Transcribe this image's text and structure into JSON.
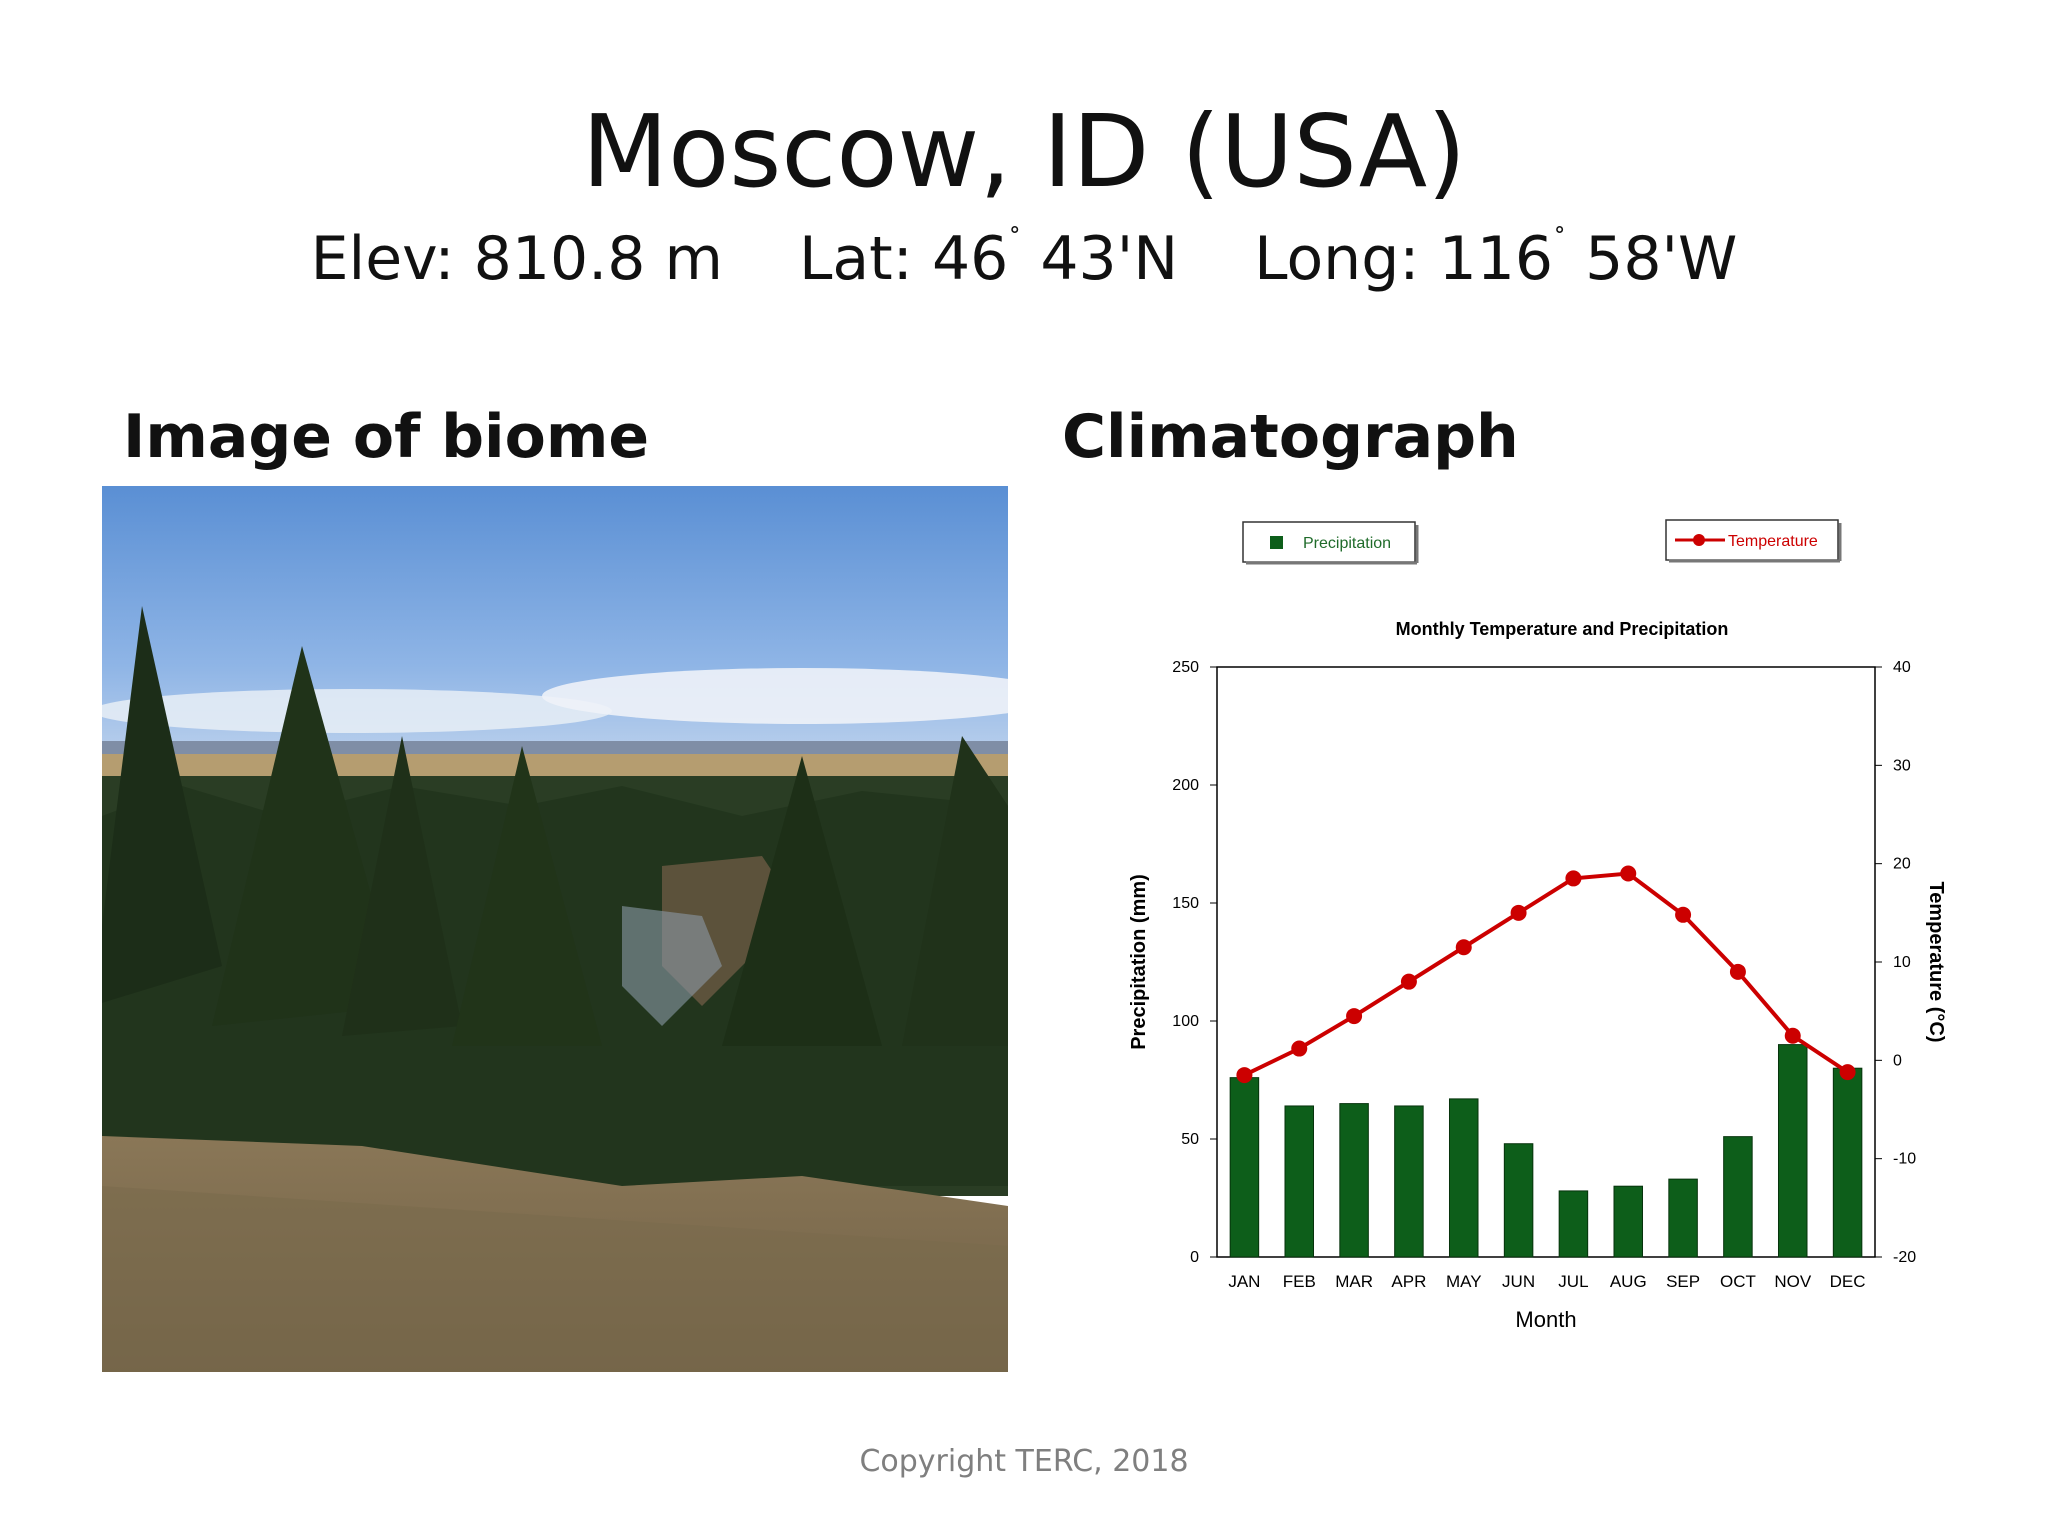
{
  "slide": {
    "title": "Moscow, ID (USA)",
    "elevation": "Elev: 810.8 m",
    "lat_prefix": "Lat: 46",
    "lat_suffix": " 43'N",
    "long_prefix": "Long: 116",
    "long_suffix": " 58'W",
    "degree_mark": "˚",
    "image_heading": "Image of biome",
    "chart_heading": "Climatograph",
    "copyright": "Copyright TERC, 2018"
  },
  "colors": {
    "precipitation": "#0d5e1a",
    "temperature": "#cc0000",
    "axis": "#000000"
  },
  "chart_data": {
    "type": "bar",
    "title": "Monthly Temperature and Precipitation",
    "xlabel": "Month",
    "ylabel": "Precipitation (mm)",
    "y2label": "Temperature (°C)",
    "categories": [
      "JAN",
      "FEB",
      "MAR",
      "APR",
      "MAY",
      "JUN",
      "JUL",
      "AUG",
      "SEP",
      "OCT",
      "NOV",
      "DEC"
    ],
    "ylim": [
      0,
      250
    ],
    "y2lim": [
      -20,
      40
    ],
    "yticks": [
      0,
      50,
      100,
      150,
      200,
      250
    ],
    "y2ticks": [
      -20,
      -10,
      0,
      10,
      20,
      30,
      40
    ],
    "series": [
      {
        "name": "Precipitation",
        "type": "bar",
        "axis": "left",
        "values": [
          76,
          64,
          65,
          64,
          67,
          48,
          28,
          30,
          33,
          51,
          90,
          80
        ]
      },
      {
        "name": "Temperature",
        "type": "line",
        "axis": "right",
        "values": [
          -1.5,
          1.2,
          4.5,
          8.0,
          11.5,
          15.0,
          18.5,
          19.0,
          14.8,
          9.0,
          2.5,
          -1.2
        ]
      }
    ],
    "legend": "top",
    "grid": false
  }
}
